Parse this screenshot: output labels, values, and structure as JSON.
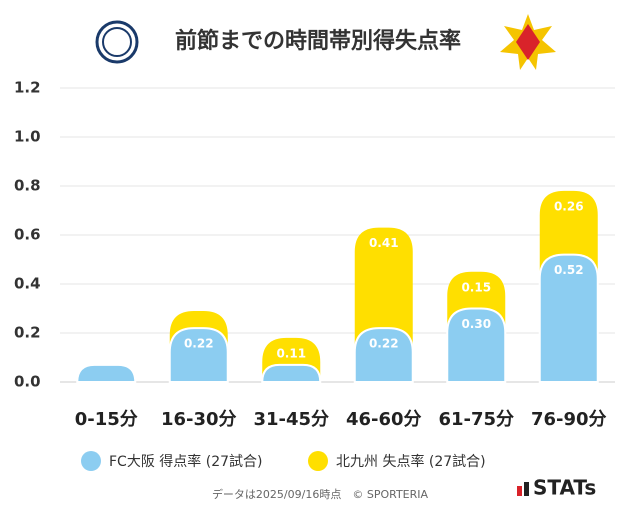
{
  "chart_data": {
    "type": "stacked_bar",
    "title": "前節までの時間帯別得失点率",
    "categories": [
      "0-15分",
      "16-30分",
      "31-45分",
      "46-60分",
      "61-75分",
      "76-90分"
    ],
    "series": [
      {
        "name": "FC大阪 得点率 (27試合)",
        "color": "#8ccdf1",
        "values": [
          0.07,
          0.22,
          0.07,
          0.22,
          0.3,
          0.52
        ],
        "value_labels": [
          null,
          "0.22",
          null,
          "0.22",
          "0.30",
          "0.52"
        ]
      },
      {
        "name": "北九州 失点率 (27試合)",
        "color": "#ffdf00",
        "values": [
          0,
          0.07,
          0.11,
          0.41,
          0.15,
          0.26
        ],
        "value_labels": [
          null,
          null,
          "0.11",
          "0.41",
          "0.15",
          "0.26"
        ]
      }
    ],
    "ylim": [
      0,
      1.2
    ],
    "yticks": [
      {
        "value": 0,
        "label": "0.0"
      },
      {
        "value": 0.2,
        "label": "0.2"
      },
      {
        "value": 0.4,
        "label": "0.4"
      },
      {
        "value": 0.6,
        "label": "0.6"
      },
      {
        "value": 0.8,
        "label": "0.8"
      },
      {
        "value": 1.0,
        "label": "1.0"
      },
      {
        "value": 1.2,
        "label": "1.2"
      }
    ],
    "grid": true,
    "footnote": "データは2025/09/16時点　© SPORTERIA",
    "brand": "STATs"
  }
}
